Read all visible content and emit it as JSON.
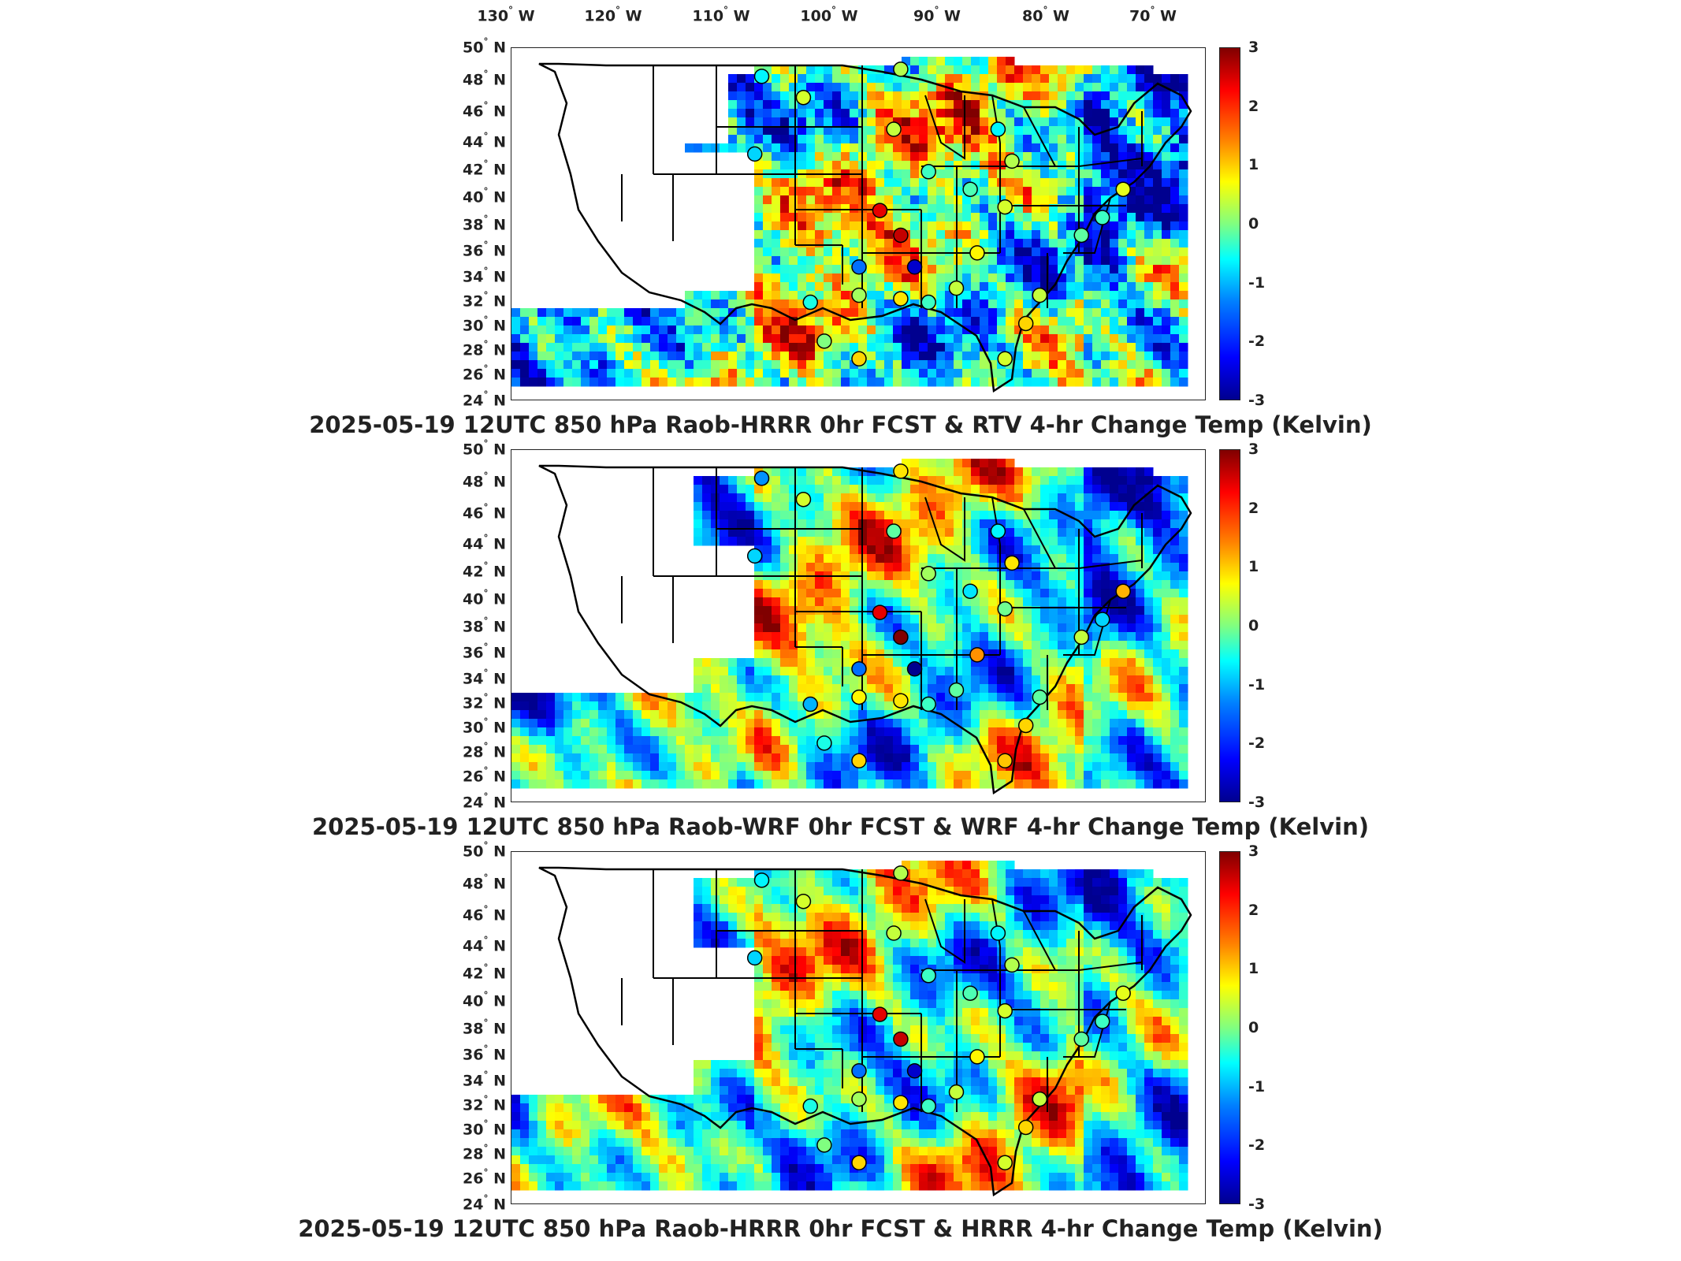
{
  "lon_axis": [
    {
      "num": "130",
      "dir": "W"
    },
    {
      "num": "120",
      "dir": "W"
    },
    {
      "num": "110",
      "dir": "W"
    },
    {
      "num": "100",
      "dir": "W"
    },
    {
      "num": "90",
      "dir": "W"
    },
    {
      "num": "80",
      "dir": "W"
    },
    {
      "num": "70",
      "dir": "W"
    }
  ],
  "lat_axis": [
    {
      "num": "50",
      "dir": "N"
    },
    {
      "num": "48",
      "dir": "N"
    },
    {
      "num": "46",
      "dir": "N"
    },
    {
      "num": "44",
      "dir": "N"
    },
    {
      "num": "42",
      "dir": "N"
    },
    {
      "num": "40",
      "dir": "N"
    },
    {
      "num": "38",
      "dir": "N"
    },
    {
      "num": "36",
      "dir": "N"
    },
    {
      "num": "34",
      "dir": "N"
    },
    {
      "num": "32",
      "dir": "N"
    },
    {
      "num": "30",
      "dir": "N"
    },
    {
      "num": "28",
      "dir": "N"
    },
    {
      "num": "26",
      "dir": "N"
    },
    {
      "num": "24",
      "dir": "N"
    }
  ],
  "colorbar": {
    "ticks": [
      "3",
      "2",
      "1",
      "0",
      "-1",
      "-2",
      "-3"
    ],
    "colors": [
      "#00008f",
      "#0000ff",
      "#0080ff",
      "#00ffff",
      "#80ff80",
      "#ffff00",
      "#ff8000",
      "#ff0000",
      "#800000"
    ]
  },
  "panels": [
    {
      "title": "2025-05-19 12UTC 850 hPa Raob-HRRR 0hr FCST & RTV 4-hr Change Temp (Kelvin)"
    },
    {
      "title": "2025-05-19 12UTC 850 hPa Raob-WRF 0hr FCST & WRF 4-hr Change Temp (Kelvin)"
    },
    {
      "title": "2025-05-19 12UTC 850 hPa Raob-HRRR 0hr FCST & HRRR 4-hr Change Temp (Kelvin)"
    }
  ]
}
